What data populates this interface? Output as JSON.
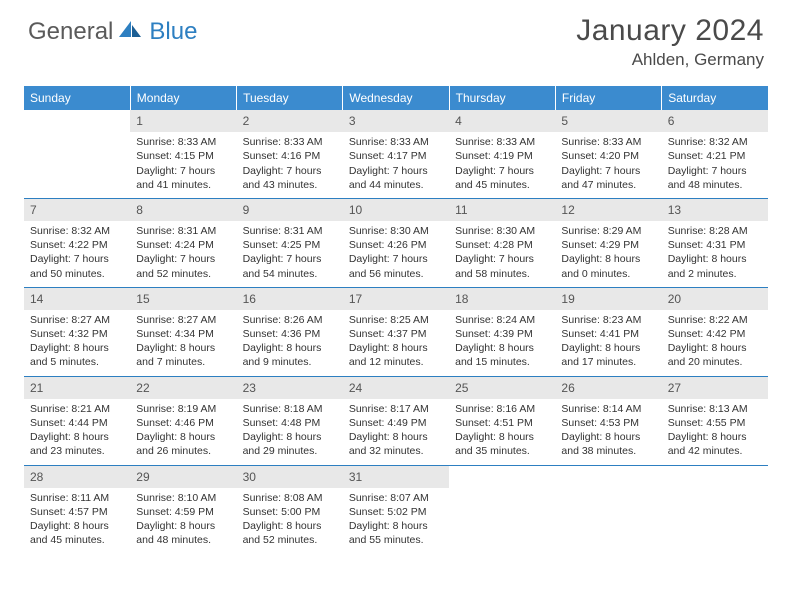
{
  "brand": {
    "word1": "General",
    "word2": "Blue"
  },
  "header": {
    "title": "January 2024",
    "location": "Ahlden, Germany"
  },
  "colors": {
    "header_bg": "#3b8bcf",
    "header_text": "#ffffff",
    "row_divider": "#2d7fc1",
    "daynum_bg": "#e8e8e8",
    "daynum_text": "#555555",
    "body_text": "#333333",
    "brand_gray": "#5a5a5a",
    "brand_blue": "#2d7fc1"
  },
  "weekdays": [
    "Sunday",
    "Monday",
    "Tuesday",
    "Wednesday",
    "Thursday",
    "Friday",
    "Saturday"
  ],
  "weeks": [
    [
      null,
      {
        "n": "1",
        "sr": "Sunrise: 8:33 AM",
        "ss": "Sunset: 4:15 PM",
        "d1": "Daylight: 7 hours",
        "d2": "and 41 minutes."
      },
      {
        "n": "2",
        "sr": "Sunrise: 8:33 AM",
        "ss": "Sunset: 4:16 PM",
        "d1": "Daylight: 7 hours",
        "d2": "and 43 minutes."
      },
      {
        "n": "3",
        "sr": "Sunrise: 8:33 AM",
        "ss": "Sunset: 4:17 PM",
        "d1": "Daylight: 7 hours",
        "d2": "and 44 minutes."
      },
      {
        "n": "4",
        "sr": "Sunrise: 8:33 AM",
        "ss": "Sunset: 4:19 PM",
        "d1": "Daylight: 7 hours",
        "d2": "and 45 minutes."
      },
      {
        "n": "5",
        "sr": "Sunrise: 8:33 AM",
        "ss": "Sunset: 4:20 PM",
        "d1": "Daylight: 7 hours",
        "d2": "and 47 minutes."
      },
      {
        "n": "6",
        "sr": "Sunrise: 8:32 AM",
        "ss": "Sunset: 4:21 PM",
        "d1": "Daylight: 7 hours",
        "d2": "and 48 minutes."
      }
    ],
    [
      {
        "n": "7",
        "sr": "Sunrise: 8:32 AM",
        "ss": "Sunset: 4:22 PM",
        "d1": "Daylight: 7 hours",
        "d2": "and 50 minutes."
      },
      {
        "n": "8",
        "sr": "Sunrise: 8:31 AM",
        "ss": "Sunset: 4:24 PM",
        "d1": "Daylight: 7 hours",
        "d2": "and 52 minutes."
      },
      {
        "n": "9",
        "sr": "Sunrise: 8:31 AM",
        "ss": "Sunset: 4:25 PM",
        "d1": "Daylight: 7 hours",
        "d2": "and 54 minutes."
      },
      {
        "n": "10",
        "sr": "Sunrise: 8:30 AM",
        "ss": "Sunset: 4:26 PM",
        "d1": "Daylight: 7 hours",
        "d2": "and 56 minutes."
      },
      {
        "n": "11",
        "sr": "Sunrise: 8:30 AM",
        "ss": "Sunset: 4:28 PM",
        "d1": "Daylight: 7 hours",
        "d2": "and 58 minutes."
      },
      {
        "n": "12",
        "sr": "Sunrise: 8:29 AM",
        "ss": "Sunset: 4:29 PM",
        "d1": "Daylight: 8 hours",
        "d2": "and 0 minutes."
      },
      {
        "n": "13",
        "sr": "Sunrise: 8:28 AM",
        "ss": "Sunset: 4:31 PM",
        "d1": "Daylight: 8 hours",
        "d2": "and 2 minutes."
      }
    ],
    [
      {
        "n": "14",
        "sr": "Sunrise: 8:27 AM",
        "ss": "Sunset: 4:32 PM",
        "d1": "Daylight: 8 hours",
        "d2": "and 5 minutes."
      },
      {
        "n": "15",
        "sr": "Sunrise: 8:27 AM",
        "ss": "Sunset: 4:34 PM",
        "d1": "Daylight: 8 hours",
        "d2": "and 7 minutes."
      },
      {
        "n": "16",
        "sr": "Sunrise: 8:26 AM",
        "ss": "Sunset: 4:36 PM",
        "d1": "Daylight: 8 hours",
        "d2": "and 9 minutes."
      },
      {
        "n": "17",
        "sr": "Sunrise: 8:25 AM",
        "ss": "Sunset: 4:37 PM",
        "d1": "Daylight: 8 hours",
        "d2": "and 12 minutes."
      },
      {
        "n": "18",
        "sr": "Sunrise: 8:24 AM",
        "ss": "Sunset: 4:39 PM",
        "d1": "Daylight: 8 hours",
        "d2": "and 15 minutes."
      },
      {
        "n": "19",
        "sr": "Sunrise: 8:23 AM",
        "ss": "Sunset: 4:41 PM",
        "d1": "Daylight: 8 hours",
        "d2": "and 17 minutes."
      },
      {
        "n": "20",
        "sr": "Sunrise: 8:22 AM",
        "ss": "Sunset: 4:42 PM",
        "d1": "Daylight: 8 hours",
        "d2": "and 20 minutes."
      }
    ],
    [
      {
        "n": "21",
        "sr": "Sunrise: 8:21 AM",
        "ss": "Sunset: 4:44 PM",
        "d1": "Daylight: 8 hours",
        "d2": "and 23 minutes."
      },
      {
        "n": "22",
        "sr": "Sunrise: 8:19 AM",
        "ss": "Sunset: 4:46 PM",
        "d1": "Daylight: 8 hours",
        "d2": "and 26 minutes."
      },
      {
        "n": "23",
        "sr": "Sunrise: 8:18 AM",
        "ss": "Sunset: 4:48 PM",
        "d1": "Daylight: 8 hours",
        "d2": "and 29 minutes."
      },
      {
        "n": "24",
        "sr": "Sunrise: 8:17 AM",
        "ss": "Sunset: 4:49 PM",
        "d1": "Daylight: 8 hours",
        "d2": "and 32 minutes."
      },
      {
        "n": "25",
        "sr": "Sunrise: 8:16 AM",
        "ss": "Sunset: 4:51 PM",
        "d1": "Daylight: 8 hours",
        "d2": "and 35 minutes."
      },
      {
        "n": "26",
        "sr": "Sunrise: 8:14 AM",
        "ss": "Sunset: 4:53 PM",
        "d1": "Daylight: 8 hours",
        "d2": "and 38 minutes."
      },
      {
        "n": "27",
        "sr": "Sunrise: 8:13 AM",
        "ss": "Sunset: 4:55 PM",
        "d1": "Daylight: 8 hours",
        "d2": "and 42 minutes."
      }
    ],
    [
      {
        "n": "28",
        "sr": "Sunrise: 8:11 AM",
        "ss": "Sunset: 4:57 PM",
        "d1": "Daylight: 8 hours",
        "d2": "and 45 minutes."
      },
      {
        "n": "29",
        "sr": "Sunrise: 8:10 AM",
        "ss": "Sunset: 4:59 PM",
        "d1": "Daylight: 8 hours",
        "d2": "and 48 minutes."
      },
      {
        "n": "30",
        "sr": "Sunrise: 8:08 AM",
        "ss": "Sunset: 5:00 PM",
        "d1": "Daylight: 8 hours",
        "d2": "and 52 minutes."
      },
      {
        "n": "31",
        "sr": "Sunrise: 8:07 AM",
        "ss": "Sunset: 5:02 PM",
        "d1": "Daylight: 8 hours",
        "d2": "and 55 minutes."
      },
      null,
      null,
      null
    ]
  ]
}
